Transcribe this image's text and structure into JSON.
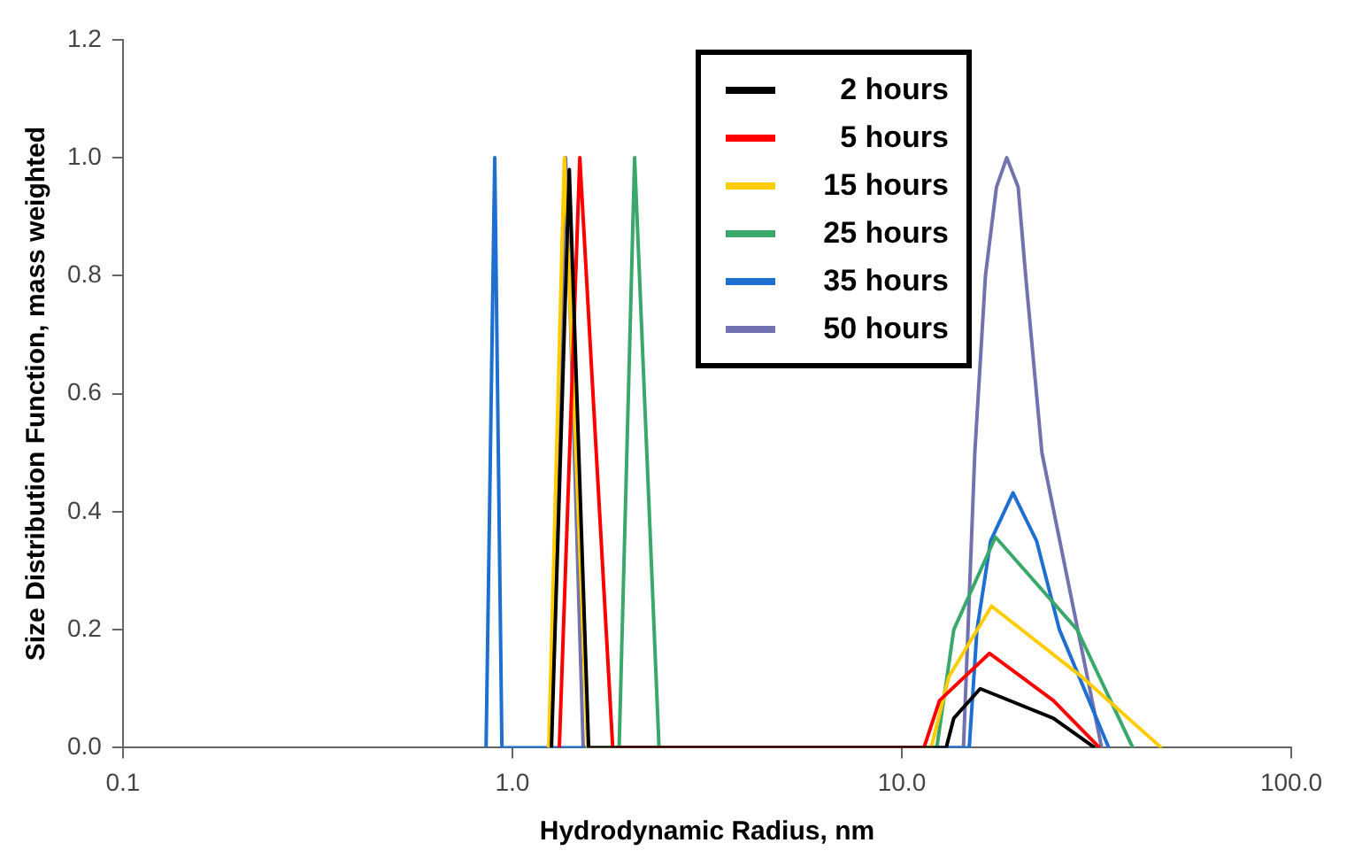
{
  "chart_data": {
    "type": "line",
    "xlabel": "Hydrodynamic Radius, nm",
    "ylabel": "Size Distribution Function, mass weighted",
    "log": "x",
    "xlim": [
      0.1,
      100
    ],
    "xticks": [
      0.1,
      {
        "value": 1,
        "label": "1.0"
      },
      {
        "value": 10,
        "label": "10.0"
      },
      {
        "value": 100,
        "label": "100.0"
      }
    ],
    "ylim": [
      0,
      1.2
    ],
    "yticks": [
      {
        "value": 0,
        "label": "0.0"
      },
      0.2,
      0.4,
      0.6,
      0.8,
      {
        "value": 1,
        "label": "1.0"
      },
      1.2
    ],
    "grid": false,
    "legend": "top",
    "marker": "none",
    "line_style": "solid",
    "series": [
      {
        "name": "2 hours",
        "color": "#000000",
        "x": [
          1.26,
          1.4,
          1.57,
          13.0,
          13.6,
          15.9,
          24.5,
          31.3
        ],
        "values": [
          0,
          0.98,
          0,
          0,
          0.05,
          0.1,
          0.05,
          0
        ]
      },
      {
        "name": "5 hours",
        "color": "#ff0000",
        "x": [
          1.32,
          1.49,
          1.81,
          11.4,
          12.5,
          16.8,
          24.5,
          32.2
        ],
        "values": [
          0,
          1.0,
          0,
          0,
          0.08,
          0.16,
          0.08,
          0
        ]
      },
      {
        "name": "15 hours",
        "color": "#ffcc00",
        "x": [
          1.24,
          1.36,
          1.56,
          11.9,
          13.2,
          17.0,
          29.0,
          46.4
        ],
        "values": [
          0,
          1.0,
          0,
          0,
          0.12,
          0.24,
          0.12,
          0
        ]
      },
      {
        "name": "25 hours",
        "color": "#3aa86a",
        "x": [
          1.88,
          2.06,
          2.38,
          12.3,
          13.6,
          17.4,
          28.2,
          39.2
        ],
        "values": [
          0,
          1.0,
          0,
          0,
          0.2,
          0.357,
          0.2,
          0
        ]
      },
      {
        "name": "35 hours",
        "color": "#1f6fd0",
        "x": [
          0.856,
          0.901,
          0.94,
          14.9,
          15.6,
          16.9,
          19.3,
          22.2,
          25.4,
          34.0
        ],
        "values": [
          0,
          1.0,
          0,
          0,
          0.2,
          0.35,
          0.432,
          0.35,
          0.2,
          0
        ]
      },
      {
        "name": "50 hours",
        "color": "#7272b0",
        "x": [
          1.25,
          1.37,
          1.52,
          14.4,
          15.4,
          16.4,
          17.5,
          18.6,
          19.9,
          20.8,
          22.9,
          32.6
        ],
        "values": [
          0,
          1.0,
          0,
          0,
          0.5,
          0.8,
          0.95,
          1.0,
          0.95,
          0.8,
          0.5,
          0
        ]
      }
    ]
  }
}
